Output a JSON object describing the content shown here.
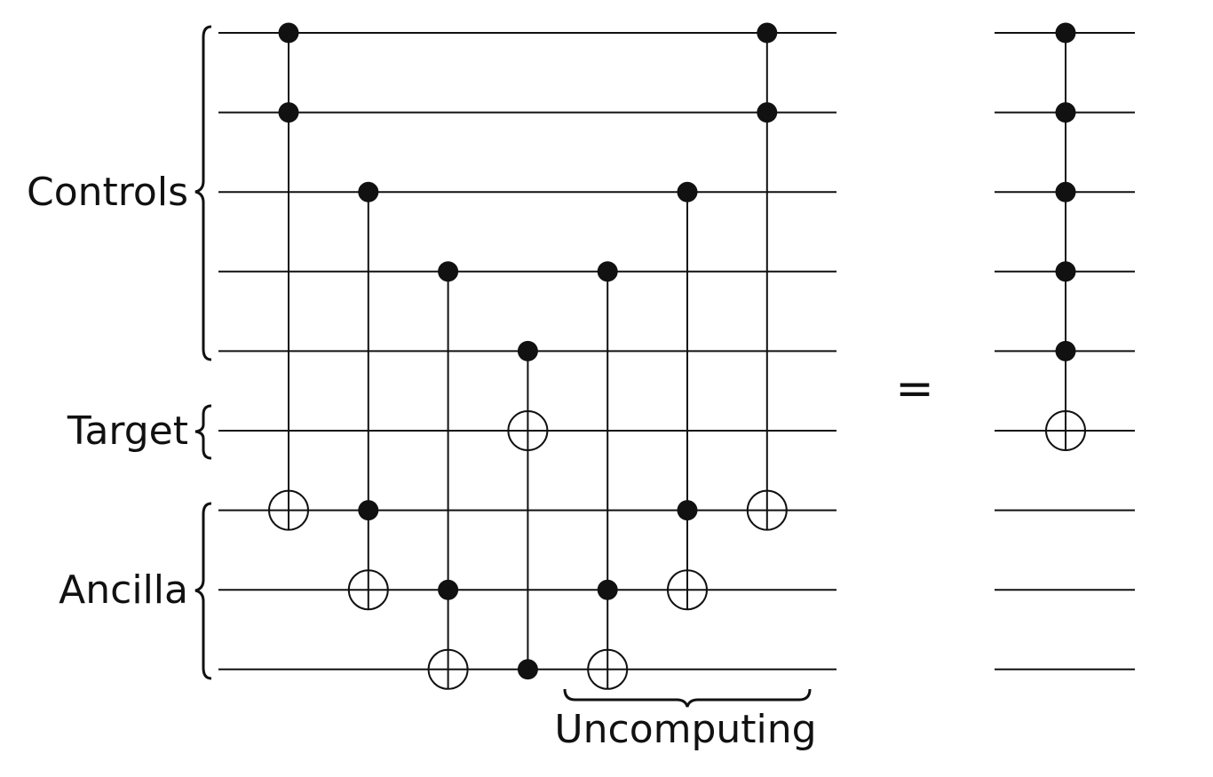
{
  "labels": {
    "controls": "Controls",
    "target": "Target",
    "ancilla": "Ancilla",
    "uncomputing": "Uncomputing",
    "equals": "="
  },
  "circuit": {
    "wire_roles": [
      "control",
      "control",
      "control",
      "control",
      "control",
      "target",
      "ancilla",
      "ancilla",
      "ancilla"
    ],
    "left_gates": [
      {
        "name": "toffoli-1",
        "controls": [
          0,
          1
        ],
        "target": 6
      },
      {
        "name": "toffoli-2",
        "controls": [
          2,
          6
        ],
        "target": 7
      },
      {
        "name": "toffoli-3",
        "controls": [
          3,
          7
        ],
        "target": 8
      },
      {
        "name": "toffoli-4",
        "controls": [
          4,
          8
        ],
        "target": 5
      },
      {
        "name": "toffoli-5",
        "controls": [
          3,
          7
        ],
        "target": 8
      },
      {
        "name": "toffoli-6",
        "controls": [
          2,
          6
        ],
        "target": 7
      },
      {
        "name": "toffoli-7",
        "controls": [
          0,
          1
        ],
        "target": 6
      }
    ],
    "uncomputing_gates": [
      4,
      5,
      6
    ],
    "right_gate": {
      "name": "multi-controlled-not",
      "controls": [
        0,
        1,
        2,
        3,
        4
      ],
      "target": 5
    }
  }
}
